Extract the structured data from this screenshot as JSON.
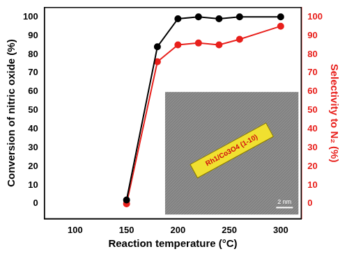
{
  "chart_data": {
    "type": "line",
    "x_label": "Reaction temperature (°C)",
    "y_label": "Conversion of nitric oxide (%)",
    "y2_label": "Selectivity to N₂ (%)",
    "x": [
      150,
      180,
      200,
      220,
      240,
      260,
      300
    ],
    "series": [
      {
        "color": "#000000",
        "marker": "circle",
        "values": [
          2,
          84,
          99,
          100,
          99,
          100,
          100
        ]
      },
      {
        "color": "#e8201c",
        "marker": "circle",
        "axis": "y2",
        "values": [
          0,
          76,
          85,
          86,
          85,
          88,
          95
        ]
      }
    ],
    "xlim": [
      70,
      320
    ],
    "xticks": [
      100,
      150,
      200,
      250,
      300
    ],
    "ylim": [
      -8,
      105
    ],
    "yticks": [
      0,
      10,
      20,
      30,
      40,
      50,
      60,
      70,
      80,
      90,
      100
    ],
    "y2lim": [
      -8,
      105
    ],
    "y2ticks": [
      0,
      10,
      20,
      30,
      40,
      50,
      60,
      70,
      80,
      90,
      100
    ],
    "grid": false,
    "annotations": [
      "Rh1/Co3O4 (1-10)",
      "2 nm"
    ]
  }
}
